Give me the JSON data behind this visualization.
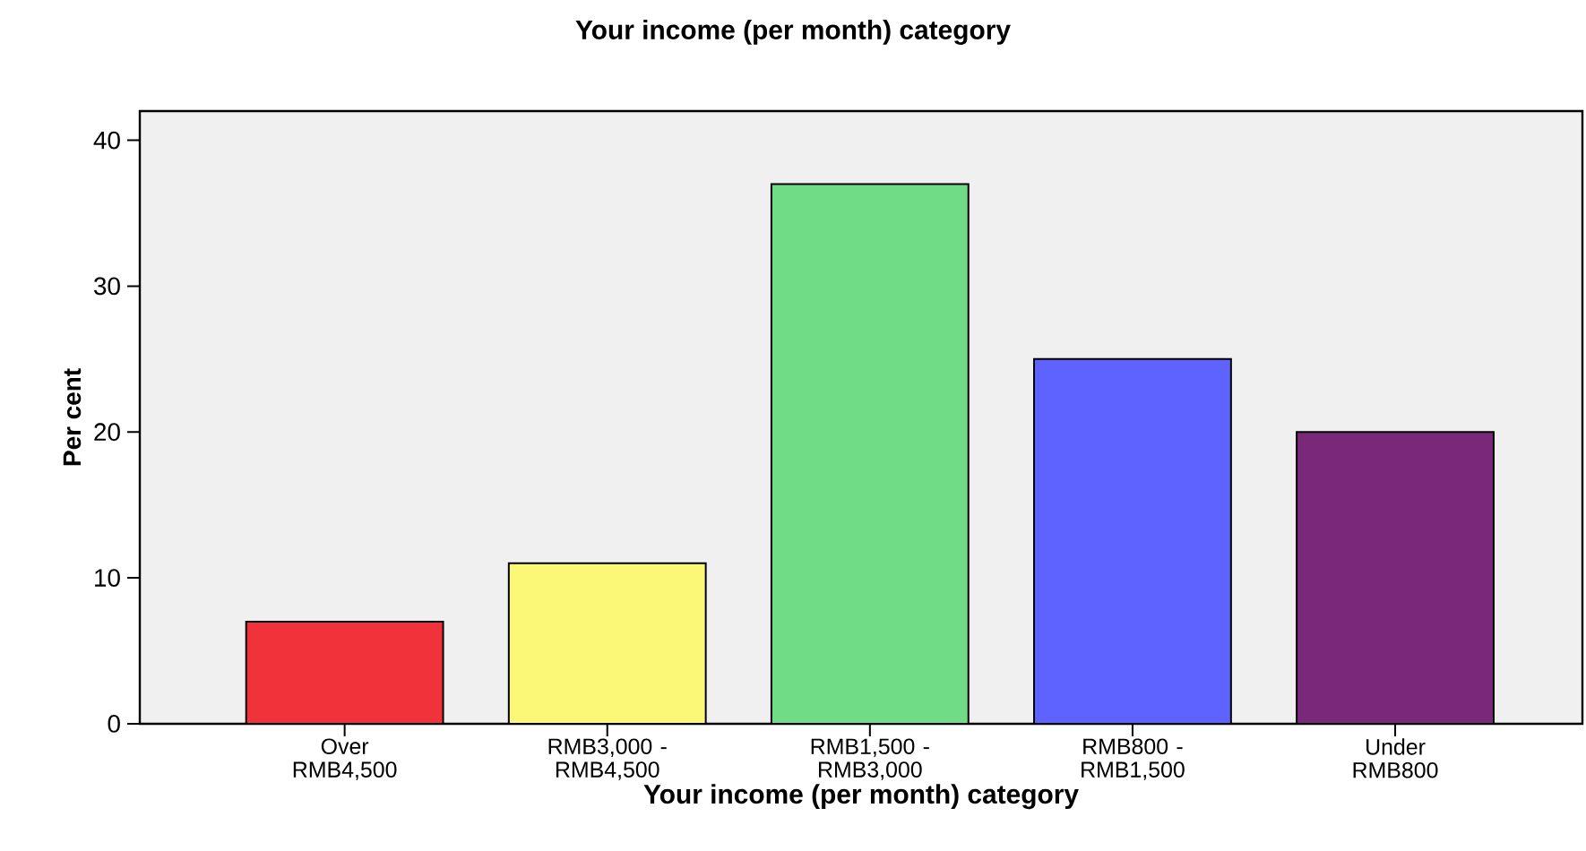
{
  "chart_data": {
    "type": "bar",
    "title": "Your income (per month) category",
    "xlabel": "Your income (per month) category",
    "ylabel": "Per cent",
    "categories": [
      "Over RMB4,500",
      "RMB3,000 - RMB4,500",
      "RMB1,500 - RMB3,000",
      "RMB800 - RMB1,500",
      "Under RMB800"
    ],
    "values": [
      7,
      11,
      37,
      25,
      20
    ],
    "colors": [
      "#f0333a",
      "#fbf877",
      "#70dc86",
      "#5e62fe",
      "#7a287a"
    ],
    "ylim": [
      0,
      42
    ],
    "yticks": [
      0,
      10,
      20,
      30,
      40
    ]
  }
}
